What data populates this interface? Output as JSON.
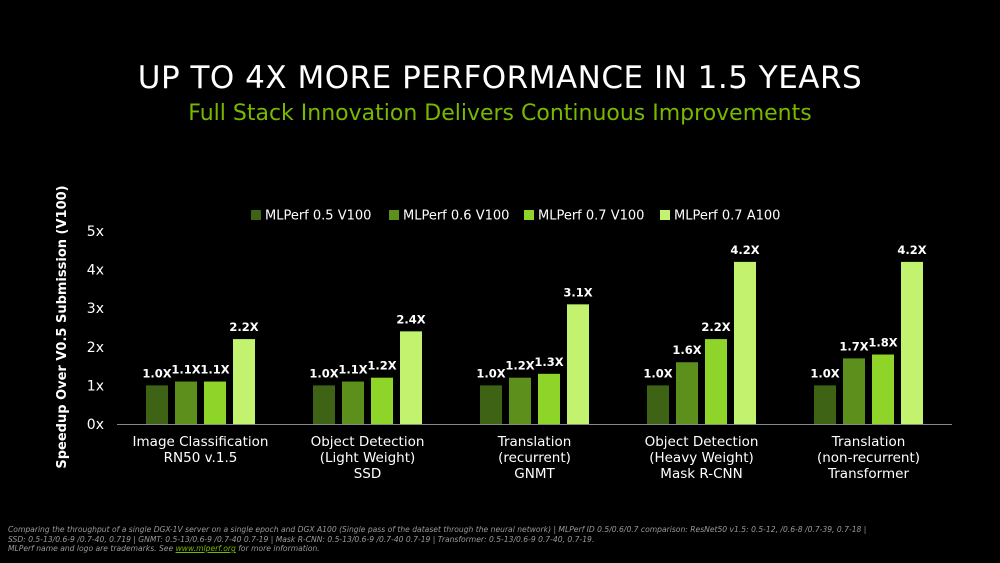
{
  "title": "UP TO 4X MORE PERFORMANCE IN 1.5 YEARS",
  "subtitle": "Full Stack Innovation Delivers Continuous Improvements",
  "chart_data": {
    "type": "bar",
    "ylabel": "Speedup Over V0.5 Submission (V100)",
    "ylim": [
      0,
      5
    ],
    "yticks": [
      "0x",
      "1x",
      "2x",
      "3x",
      "4x",
      "5x"
    ],
    "legend_position": "top",
    "categories": [
      [
        "Image Classification",
        "RN50 v.1.5"
      ],
      [
        "Object Detection",
        "(Light Weight)",
        "SSD"
      ],
      [
        "Translation",
        "(recurrent)",
        "GNMT"
      ],
      [
        "Object Detection",
        "(Heavy Weight)",
        "Mask R-CNN"
      ],
      [
        "Translation",
        "(non-recurrent)",
        "Transformer"
      ]
    ],
    "series": [
      {
        "name": "MLPerf 0.5 V100",
        "color": "#3f6314",
        "values": [
          1.0,
          1.0,
          1.0,
          1.0,
          1.0
        ],
        "labels": [
          "1.0X",
          "1.0X",
          "1.0X",
          "1.0X",
          "1.0X"
        ]
      },
      {
        "name": "MLPerf 0.6 V100",
        "color": "#5c8f1c",
        "values": [
          1.1,
          1.1,
          1.2,
          1.6,
          1.7
        ],
        "labels": [
          "1.1X",
          "1.1X",
          "1.2X",
          "1.6X",
          "1.7X"
        ]
      },
      {
        "name": "MLPerf 0.7 V100",
        "color": "#8fd428",
        "values": [
          1.1,
          1.2,
          1.3,
          2.2,
          1.8
        ],
        "labels": [
          "1.1X",
          "1.2X",
          "1.3X",
          "2.2X",
          "1.8X"
        ]
      },
      {
        "name": "MLPerf 0.7 A100",
        "color": "#c2f26e",
        "values": [
          2.2,
          2.4,
          3.1,
          4.2,
          4.2
        ],
        "labels": [
          "2.2X",
          "2.4X",
          "3.1X",
          "4.2X",
          "4.2X"
        ]
      }
    ]
  },
  "footnote": {
    "line1": "Comparing the throughput of a single DGX-1V server on a single epoch and DGX A100 (Single pass of the dataset through the neural network) | MLPerf ID 0.5/0.6/0.7 comparison: ResNet50 v1.5: 0.5-12, /0.6-8 /0.7-39, 0.7-18  |",
    "line2": "SSD: 0.5-13/0.6-9 /0.7-40, 0.719  |  GNMT: 0.5-13/0.6-9 /0.7-40 0.7-19  |  Mask R-CNN: 0.5-13/0.6-9 /0.7-40 0.7-19 | Transformer: 0.5-13/0.6-9 0.7-40, 0.7-19.",
    "line3_prefix": "MLPerf name and logo are trademarks. See ",
    "link": "www.mlperf.org",
    "line3_suffix": " for more information."
  }
}
